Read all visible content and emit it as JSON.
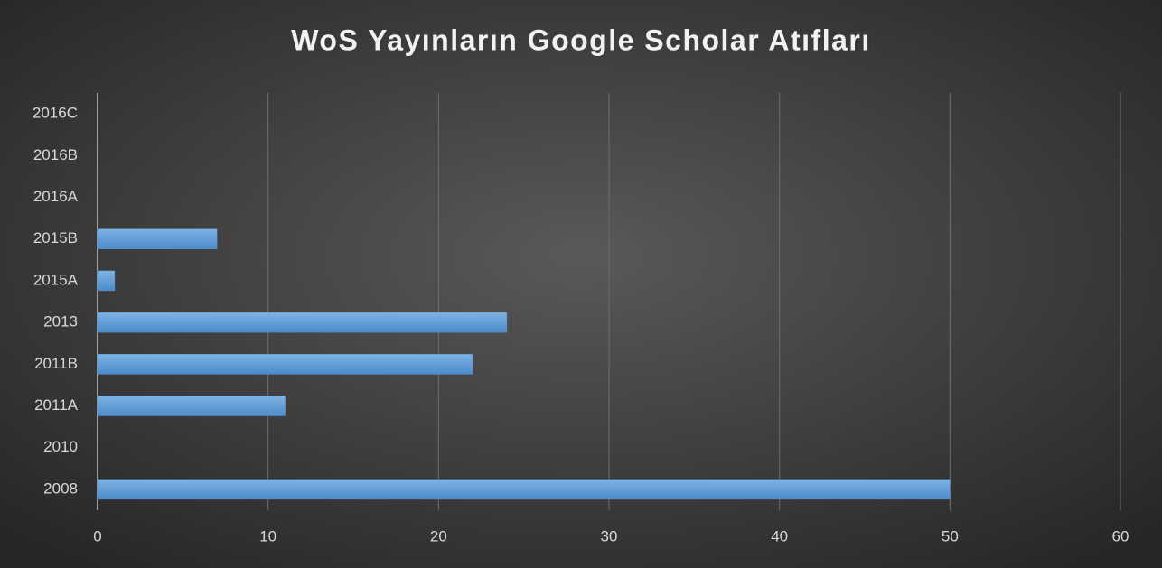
{
  "chart_data": {
    "type": "bar",
    "orientation": "horizontal",
    "title": "WoS Yayınların Google Scholar Atıfları",
    "categories": [
      "2008",
      "2010",
      "2011A",
      "2011B",
      "2013",
      "2015A",
      "2015B",
      "2016A",
      "2016B",
      "2016C"
    ],
    "values": [
      50,
      0,
      11,
      22,
      24,
      1,
      7,
      0,
      0,
      0
    ],
    "color": "#5b9bd5",
    "xlim": [
      0,
      60
    ],
    "xticks": [
      0,
      10,
      20,
      30,
      40,
      50,
      60
    ],
    "grid": true
  }
}
